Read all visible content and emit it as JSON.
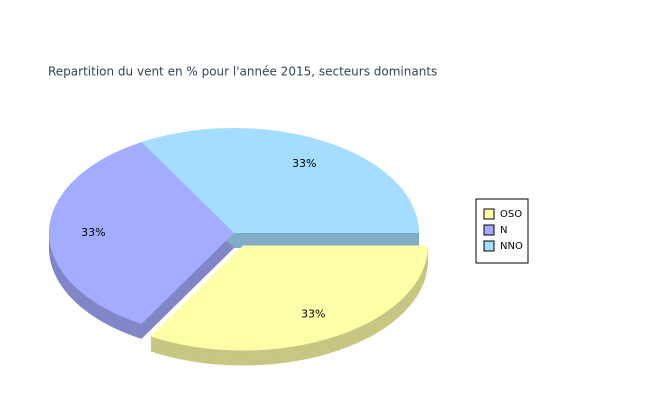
{
  "chart_data": {
    "type": "pie",
    "title": "Repartition du vent en % pour l'année 2015, secteurs dominants",
    "categories": [
      "OSO",
      "N",
      "NNO"
    ],
    "values": [
      33,
      33,
      33
    ],
    "value_labels": [
      "33%",
      "33%",
      "33%"
    ],
    "colors": [
      "#ffffa8",
      "#a4acff",
      "#a4ddff"
    ],
    "legend": "right"
  }
}
